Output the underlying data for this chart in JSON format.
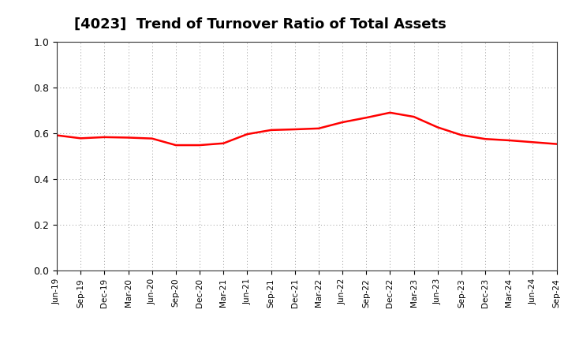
{
  "title": "[4023]  Trend of Turnover Ratio of Total Assets",
  "title_fontsize": 13,
  "line_color": "#FF0000",
  "line_width": 1.8,
  "background_color": "#FFFFFF",
  "grid_color": "#999999",
  "ylim": [
    0.0,
    1.0
  ],
  "yticks": [
    0.0,
    0.2,
    0.4,
    0.6,
    0.8,
    1.0
  ],
  "x_labels": [
    "Jun-19",
    "Sep-19",
    "Dec-19",
    "Mar-20",
    "Jun-20",
    "Sep-20",
    "Dec-20",
    "Mar-21",
    "Jun-21",
    "Sep-21",
    "Dec-21",
    "Mar-22",
    "Jun-22",
    "Sep-22",
    "Dec-22",
    "Mar-23",
    "Jun-23",
    "Sep-23",
    "Dec-23",
    "Mar-24",
    "Jun-24",
    "Sep-24"
  ],
  "values": [
    0.591,
    0.578,
    0.583,
    0.581,
    0.577,
    0.548,
    0.548,
    0.556,
    0.596,
    0.614,
    0.617,
    0.621,
    0.648,
    0.668,
    0.69,
    0.672,
    0.626,
    0.592,
    0.575,
    0.569,
    0.561,
    0.553
  ]
}
